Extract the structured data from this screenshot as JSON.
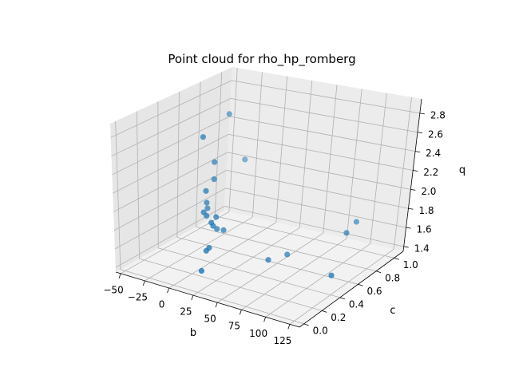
{
  "chart_data": {
    "type": "scatter",
    "projection": "3d",
    "title": "Point cloud for rho_hp_romberg",
    "xlabel": "b",
    "ylabel": "c",
    "zlabel": "q",
    "xlim": [
      -55,
      135
    ],
    "ylim": [
      -0.05,
      1.1
    ],
    "zlim": [
      1.35,
      2.95
    ],
    "xticks": [
      -50,
      -25,
      0,
      25,
      50,
      75,
      100,
      125
    ],
    "yticks": [
      0.0,
      0.2,
      0.4,
      0.6,
      0.8,
      1.0
    ],
    "zticks": [
      1.4,
      1.6,
      1.8,
      2.0,
      2.2,
      2.4,
      2.6,
      2.8
    ],
    "xtick_labels": [
      "−50",
      "−25",
      "0",
      "25",
      "50",
      "75",
      "100",
      "125"
    ],
    "ytick_labels": [
      "0.0",
      "0.2",
      "0.4",
      "0.6",
      "0.8",
      "1.0"
    ],
    "ztick_labels": [
      "1.4",
      "1.6",
      "1.8",
      "2.0",
      "2.2",
      "2.4",
      "2.6",
      "2.8"
    ],
    "grid": true,
    "color": "#1f77b4",
    "points": [
      {
        "x": -30,
        "y": 0.85,
        "z": 2.62
      },
      {
        "x": -25,
        "y": 0.55,
        "z": 2.55
      },
      {
        "x": -20,
        "y": 0.62,
        "z": 2.25
      },
      {
        "x": -18,
        "y": 0.6,
        "z": 2.08
      },
      {
        "x": -18,
        "y": 0.52,
        "z": 2.0
      },
      {
        "x": -22,
        "y": 0.95,
        "z": 2.08
      },
      {
        "x": -20,
        "y": 0.55,
        "z": 1.85
      },
      {
        "x": -24,
        "y": 0.6,
        "z": 1.75
      },
      {
        "x": -18,
        "y": 0.5,
        "z": 1.78
      },
      {
        "x": -15,
        "y": 0.5,
        "z": 1.75
      },
      {
        "x": -10,
        "y": 0.55,
        "z": 1.72
      },
      {
        "x": -10,
        "y": 0.5,
        "z": 1.69
      },
      {
        "x": -8,
        "y": 0.5,
        "z": 1.66
      },
      {
        "x": -6,
        "y": 0.52,
        "z": 1.62
      },
      {
        "x": -2,
        "y": 0.55,
        "z": 1.6
      },
      {
        "x": -2,
        "y": 0.4,
        "z": 1.5
      },
      {
        "x": -5,
        "y": 0.4,
        "z": 1.46
      },
      {
        "x": 0,
        "y": 0.3,
        "z": 1.32
      },
      {
        "x": 50,
        "y": 0.5,
        "z": 1.45
      },
      {
        "x": 60,
        "y": 0.6,
        "z": 1.47
      },
      {
        "x": 115,
        "y": 0.65,
        "z": 1.8
      },
      {
        "x": 115,
        "y": 0.75,
        "z": 1.85
      },
      {
        "x": 125,
        "y": 0.4,
        "z": 1.55
      }
    ]
  }
}
